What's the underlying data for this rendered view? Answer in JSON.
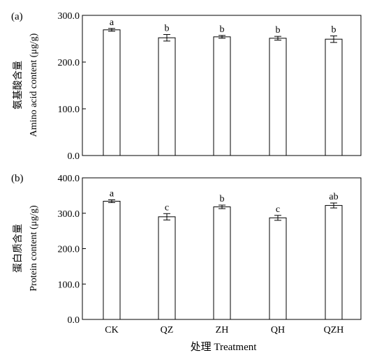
{
  "chart_data": [
    {
      "type": "bar",
      "panel_label": "(a)",
      "ylabel_cn": "氨基酸含量",
      "ylabel_en": "Amino acid content (μg/g)",
      "categories": [
        "CK",
        "QZ",
        "ZH",
        "QH",
        "QZH"
      ],
      "values": [
        269,
        252,
        254,
        251,
        249
      ],
      "errors": [
        3,
        7,
        3,
        4,
        7
      ],
      "significance": [
        "a",
        "b",
        "b",
        "b",
        "b"
      ],
      "ylim": [
        0,
        300
      ],
      "yticks": [
        "0.0",
        "100.0",
        "200.0",
        "300.0"
      ],
      "grid": false
    },
    {
      "type": "bar",
      "panel_label": "(b)",
      "ylabel_cn": "蛋白质含量",
      "ylabel_en": "Protein content (μg/g)",
      "categories": [
        "CK",
        "QZ",
        "ZH",
        "QH",
        "QZH"
      ],
      "values": [
        334,
        290,
        318,
        287,
        322
      ],
      "errors": [
        4,
        9,
        5,
        7,
        7
      ],
      "significance": [
        "a",
        "c",
        "b",
        "c",
        "ab"
      ],
      "ylim": [
        0,
        400
      ],
      "yticks": [
        "0.0",
        "100.0",
        "200.0",
        "300.0",
        "400.0"
      ],
      "grid": false
    }
  ],
  "xlabel": "处理 Treatment"
}
